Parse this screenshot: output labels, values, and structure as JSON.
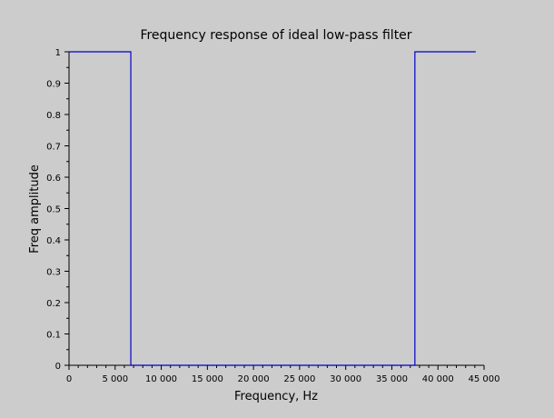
{
  "chart_data": {
    "type": "line",
    "title": "Frequency response of ideal low-pass filter",
    "xlabel": "Frequency, Hz",
    "ylabel": "Freq amplitude",
    "xlim": [
      0,
      45000
    ],
    "ylim": [
      0,
      1
    ],
    "x_ticks": [
      0,
      5000,
      10000,
      15000,
      20000,
      25000,
      30000,
      35000,
      40000,
      45000
    ],
    "x_tick_labels": [
      "0",
      "5 000",
      "10 000",
      "15 000",
      "20 000",
      "25 000",
      "30 000",
      "35 000",
      "40 000",
      "45 000"
    ],
    "y_ticks": [
      0,
      0.1,
      0.2,
      0.3,
      0.4,
      0.5,
      0.6,
      0.7,
      0.8,
      0.9,
      1
    ],
    "y_tick_labels": [
      "0",
      "0.1",
      "0.2",
      "0.3",
      "0.4",
      "0.5",
      "0.6",
      "0.7",
      "0.8",
      "0.9",
      "1"
    ],
    "grid": false,
    "series": [
      {
        "color": "#0000cc",
        "x": [
          0,
          6700,
          6700,
          37500,
          37500,
          44100
        ],
        "y": [
          1,
          1,
          0,
          0,
          1,
          1
        ]
      }
    ]
  }
}
